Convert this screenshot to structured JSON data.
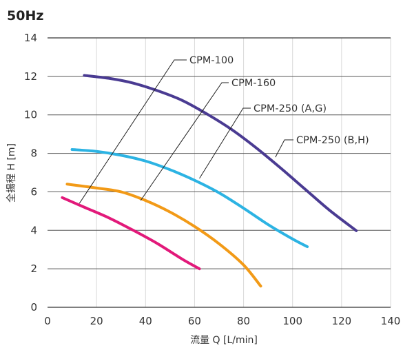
{
  "chart_data": {
    "type": "line",
    "title": "50Hz",
    "xlabel": "流量 Q [L/min]",
    "ylabel": "全揚程 H [m]",
    "xlim": [
      0,
      140
    ],
    "ylim": [
      0,
      14
    ],
    "xticks": [
      0,
      20,
      40,
      60,
      80,
      100,
      120,
      140
    ],
    "yticks": [
      0,
      2,
      4,
      6,
      8,
      10,
      12,
      14
    ],
    "grid": "vertical",
    "legend": "callouts",
    "series": [
      {
        "name": "CPM-100",
        "color": "#e2197a",
        "points": [
          [
            6,
            5.7
          ],
          [
            15,
            5.2
          ],
          [
            25,
            4.65
          ],
          [
            35,
            4.0
          ],
          [
            45,
            3.3
          ],
          [
            55,
            2.5
          ],
          [
            62,
            2.0
          ]
        ]
      },
      {
        "name": "CPM-160",
        "color": "#f29a17",
        "points": [
          [
            8,
            6.4
          ],
          [
            20,
            6.2
          ],
          [
            30,
            6.0
          ],
          [
            40,
            5.55
          ],
          [
            50,
            4.95
          ],
          [
            60,
            4.2
          ],
          [
            70,
            3.3
          ],
          [
            80,
            2.2
          ],
          [
            87,
            1.1
          ]
        ]
      },
      {
        "name": "CPM-250 (A,G)",
        "color": "#2cb3e3",
        "points": [
          [
            10,
            8.2
          ],
          [
            20,
            8.1
          ],
          [
            30,
            7.9
          ],
          [
            40,
            7.6
          ],
          [
            50,
            7.15
          ],
          [
            60,
            6.6
          ],
          [
            70,
            5.95
          ],
          [
            80,
            5.15
          ],
          [
            90,
            4.3
          ],
          [
            100,
            3.55
          ],
          [
            106,
            3.15
          ]
        ]
      },
      {
        "name": "CPM-250 (B,H)",
        "color": "#4a3b92",
        "points": [
          [
            15,
            12.05
          ],
          [
            25,
            11.9
          ],
          [
            35,
            11.65
          ],
          [
            45,
            11.25
          ],
          [
            55,
            10.75
          ],
          [
            65,
            10.05
          ],
          [
            75,
            9.25
          ],
          [
            85,
            8.3
          ],
          [
            95,
            7.25
          ],
          [
            105,
            6.15
          ],
          [
            115,
            5.05
          ],
          [
            126,
            3.98
          ]
        ]
      }
    ],
    "callouts": [
      {
        "label": "CPM-100",
        "color": "#e2197a"
      },
      {
        "label": "CPM-160",
        "color": "#f29a17"
      },
      {
        "label": "CPM-250 (A,G)",
        "color": "#2cb3e3"
      },
      {
        "label": "CPM-250 (B,H)",
        "color": "#4a3b92"
      }
    ]
  }
}
